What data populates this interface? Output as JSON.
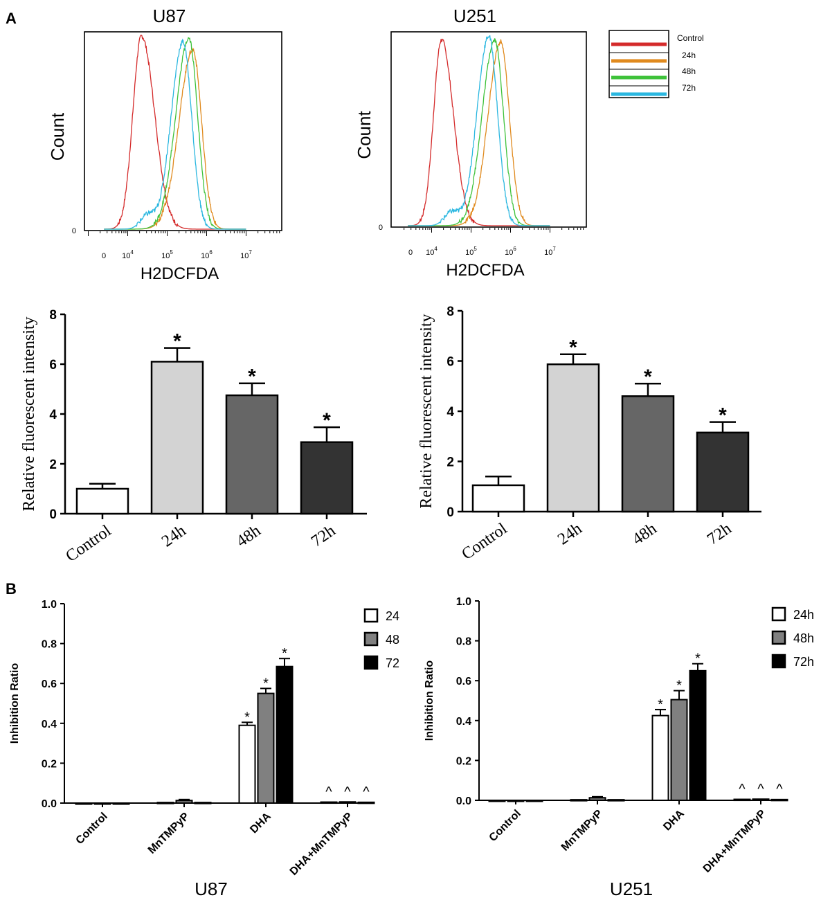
{
  "panel_labels": {
    "a": "A",
    "b": "B"
  },
  "chart_data": [
    {
      "id": "hist_u87",
      "type": "line",
      "subtype": "flow-cytometry-histogram",
      "title": "U87",
      "xlabel": "H2DCFDA",
      "ylabel": "Count",
      "x_scale": "log",
      "xticks": [
        {
          "base": "0",
          "exp": ""
        },
        {
          "base": "10",
          "exp": "4"
        },
        {
          "base": "10",
          "exp": "5"
        },
        {
          "base": "10",
          "exp": "6"
        },
        {
          "base": "10",
          "exp": "7"
        }
      ],
      "y_tick": "0",
      "series": [
        {
          "name": "Control",
          "color": "#d42a2a",
          "peak_log10": 4.35,
          "left_sd": 0.22,
          "right_sd": 0.33,
          "height": 1.0,
          "shoulder": 0.0
        },
        {
          "name": "24h",
          "color": "#e08a1e",
          "peak_log10": 5.65,
          "left_sd": 0.35,
          "right_sd": 0.22,
          "height": 0.93,
          "shoulder": 0.0
        },
        {
          "name": "48h",
          "color": "#3ec23a",
          "peak_log10": 5.55,
          "left_sd": 0.33,
          "right_sd": 0.22,
          "height": 0.99,
          "shoulder": 0.0
        },
        {
          "name": "72h",
          "color": "#2ab7e0",
          "peak_log10": 5.4,
          "left_sd": 0.3,
          "right_sd": 0.22,
          "height": 0.97,
          "shoulder": 0.07
        }
      ]
    },
    {
      "id": "hist_u251",
      "type": "line",
      "subtype": "flow-cytometry-histogram",
      "title": "U251",
      "xlabel": "H2DCFDA",
      "ylabel": "Count",
      "x_scale": "log",
      "xticks": [
        {
          "base": "0",
          "exp": ""
        },
        {
          "base": "10",
          "exp": "4"
        },
        {
          "base": "10",
          "exp": "5"
        },
        {
          "base": "10",
          "exp": "6"
        },
        {
          "base": "10",
          "exp": "7"
        }
      ],
      "y_tick": "0",
      "series": [
        {
          "name": "Control",
          "color": "#d42a2a",
          "peak_log10": 4.25,
          "left_sd": 0.2,
          "right_sd": 0.3,
          "height": 0.98,
          "shoulder": 0.0
        },
        {
          "name": "24h",
          "color": "#e08a1e",
          "peak_log10": 5.75,
          "left_sd": 0.32,
          "right_sd": 0.22,
          "height": 0.97,
          "shoulder": 0.0
        },
        {
          "name": "48h",
          "color": "#3ec23a",
          "peak_log10": 5.6,
          "left_sd": 0.32,
          "right_sd": 0.22,
          "height": 0.98,
          "shoulder": 0.0
        },
        {
          "name": "72h",
          "color": "#2ab7e0",
          "peak_log10": 5.45,
          "left_sd": 0.3,
          "right_sd": 0.22,
          "height": 1.0,
          "shoulder": 0.07
        }
      ]
    },
    {
      "id": "bar_ros_u87",
      "type": "bar",
      "ylabel": "Relative fluorescent intensity",
      "ylim": [
        0,
        8
      ],
      "yticks": [
        "0",
        "2",
        "4",
        "6",
        "8"
      ],
      "categories": [
        "Control",
        "24h",
        "48h",
        "72h"
      ],
      "values": [
        1.0,
        6.1,
        4.75,
        2.87
      ],
      "errors": [
        0.2,
        0.55,
        0.48,
        0.6
      ],
      "significance": [
        "",
        "*",
        "*",
        "*"
      ],
      "colors": [
        "#ffffff",
        "#d3d3d3",
        "#666666",
        "#333333"
      ]
    },
    {
      "id": "bar_ros_u251",
      "type": "bar",
      "ylabel": "Relative fluorescent intensity",
      "ylim": [
        0,
        8
      ],
      "yticks": [
        "0",
        "2",
        "4",
        "6",
        "8"
      ],
      "categories": [
        "Control",
        "24h",
        "48h",
        "72h"
      ],
      "values": [
        1.05,
        5.87,
        4.6,
        3.15
      ],
      "errors": [
        0.35,
        0.4,
        0.5,
        0.42
      ],
      "significance": [
        "",
        "*",
        "*",
        "*"
      ],
      "colors": [
        "#ffffff",
        "#d3d3d3",
        "#666666",
        "#333333"
      ]
    },
    {
      "id": "bar_inhib_u87",
      "type": "bar",
      "title": "U87",
      "ylabel": "Inhibition Ratio",
      "ylim": [
        0,
        1.0
      ],
      "yticks": [
        "0.0",
        "0.2",
        "0.4",
        "0.6",
        "0.8",
        "1.0"
      ],
      "categories": [
        "Control",
        "MnTMPyP",
        "DHA",
        "DHA+MnTMPyP"
      ],
      "series": [
        {
          "name": "24",
          "color": "#ffffff",
          "values": [
            0.0,
            0.003,
            0.39,
            0.005
          ],
          "errors": [
            0,
            0,
            0.015,
            0
          ],
          "marks": [
            "",
            "",
            "*",
            "^"
          ]
        },
        {
          "name": "48",
          "color": "#808080",
          "values": [
            0.0,
            0.013,
            0.55,
            0.006
          ],
          "errors": [
            0,
            0.005,
            0.025,
            0
          ],
          "marks": [
            "",
            "",
            "*",
            "^"
          ]
        },
        {
          "name": "72",
          "color": "#000000",
          "values": [
            0.0,
            0.003,
            0.685,
            0.004
          ],
          "errors": [
            0,
            0,
            0.04,
            0
          ],
          "marks": [
            "",
            "",
            "*",
            "^"
          ]
        }
      ]
    },
    {
      "id": "bar_inhib_u251",
      "type": "bar",
      "title": "U251",
      "ylabel": "Inhibition Ratio",
      "ylim": [
        0,
        1.0
      ],
      "yticks": [
        "0.0",
        "0.2",
        "0.4",
        "0.6",
        "0.8",
        "1.0"
      ],
      "categories": [
        "Control",
        "MnTMPyP",
        "DHA",
        "DHA+MnTMPyP"
      ],
      "series": [
        {
          "name": "24h",
          "color": "#ffffff",
          "values": [
            0.0,
            0.003,
            0.425,
            0.005
          ],
          "errors": [
            0,
            0,
            0.03,
            0
          ],
          "marks": [
            "",
            "",
            "*",
            "^"
          ]
        },
        {
          "name": "48h",
          "color": "#808080",
          "values": [
            0.0,
            0.013,
            0.505,
            0.006
          ],
          "errors": [
            0,
            0.005,
            0.045,
            0
          ],
          "marks": [
            "",
            "",
            "*",
            "^"
          ]
        },
        {
          "name": "72h",
          "color": "#000000",
          "values": [
            0.0,
            0.003,
            0.65,
            0.004
          ],
          "errors": [
            0,
            0,
            0.035,
            0
          ],
          "marks": [
            "",
            "",
            "*",
            "^"
          ]
        }
      ]
    }
  ]
}
